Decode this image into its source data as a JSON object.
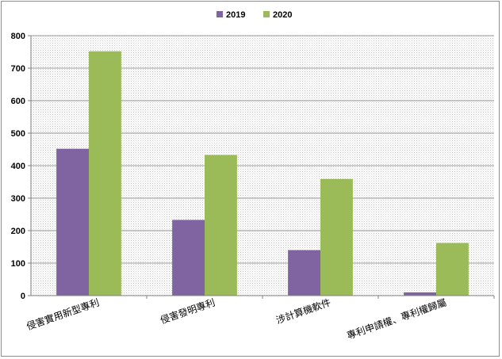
{
  "chart_data": {
    "type": "bar",
    "categories": [
      "侵害實用新型專利",
      "侵害發明專利",
      "涉計算機軟件",
      "專利申請權、專利權歸屬"
    ],
    "series": [
      {
        "name": "2019",
        "values": [
          452,
          233,
          140,
          10
        ],
        "color": "#8064a2"
      },
      {
        "name": "2020",
        "values": [
          752,
          433,
          359,
          162
        ],
        "color": "#9bbb59"
      }
    ],
    "ylim": [
      0,
      800
    ],
    "yticks": [
      0,
      100,
      200,
      300,
      400,
      500,
      600,
      700,
      800
    ],
    "grid": true,
    "legend": "top-center",
    "xlabel": "",
    "ylabel": "",
    "title": ""
  }
}
